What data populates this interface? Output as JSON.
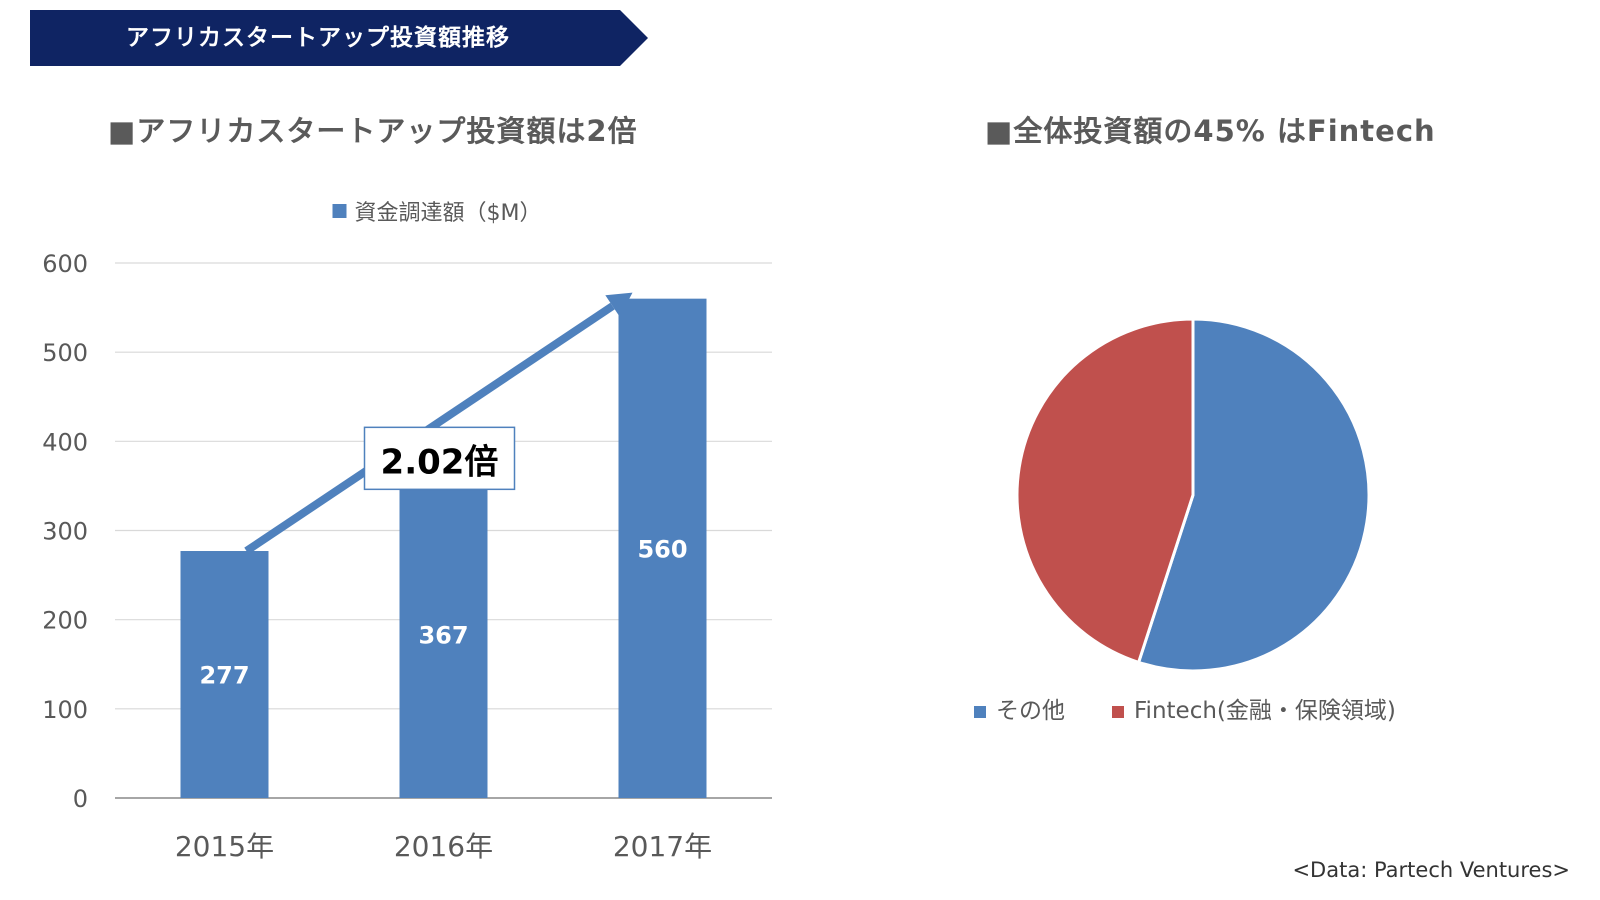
{
  "header": {
    "banner_title": "アフリカスタートアップ投資額推移"
  },
  "left": {
    "title": "アフリカスタートアップ投資額は2倍",
    "title_marker": "■"
  },
  "right": {
    "title": "全体投資額の45% はFintech",
    "title_marker": "■"
  },
  "source_note": "<Data: Partech Ventures>",
  "colors": {
    "banner": "#0f2463",
    "blue": "#4f81bd",
    "red": "#c0504d",
    "grid": "#d9d9d9",
    "axis": "#a6a6a6"
  },
  "chart_data": [
    {
      "type": "bar",
      "categories": [
        "2015年",
        "2016年",
        "2017年"
      ],
      "series": [
        {
          "name": "資金調達額（$M）",
          "values": [
            277,
            367,
            560
          ]
        }
      ],
      "ylim": [
        0,
        600
      ],
      "yticks": [
        0,
        100,
        200,
        300,
        400,
        500,
        600
      ],
      "grid": true,
      "legend": "top",
      "annotation": {
        "text": "2.02倍",
        "from": "2015年",
        "to": "2017年"
      }
    },
    {
      "type": "pie",
      "labels": [
        "その他",
        "Fintech(金融・保険領域)"
      ],
      "values": [
        55,
        45
      ],
      "legend": "bottom"
    }
  ]
}
